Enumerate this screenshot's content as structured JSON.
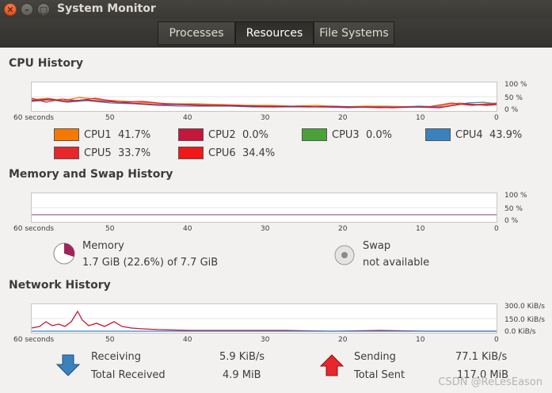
{
  "window": {
    "title": "System Monitor"
  },
  "tabs": [
    {
      "label": "Processes",
      "active": false
    },
    {
      "label": "Resources",
      "active": true
    },
    {
      "label": "File Systems",
      "active": false
    }
  ],
  "cpu": {
    "title": "CPU History",
    "y_ticks": [
      "100 %",
      "50 %",
      "0 %"
    ],
    "x_ticks": [
      "60 seconds",
      "50",
      "40",
      "30",
      "20",
      "10",
      "0"
    ],
    "legend": [
      {
        "name": "CPU1",
        "value": "41.7%",
        "color": "#f57900"
      },
      {
        "name": "CPU2",
        "value": "0.0%",
        "color": "#c4173b"
      },
      {
        "name": "CPU3",
        "value": "0.0%",
        "color": "#4aa13a"
      },
      {
        "name": "CPU4",
        "value": "43.9%",
        "color": "#3a82bd"
      },
      {
        "name": "CPU5",
        "value": "33.7%",
        "color": "#e8262b"
      },
      {
        "name": "CPU6",
        "value": "34.4%",
        "color": "#f01818"
      }
    ]
  },
  "memory": {
    "title": "Memory and Swap History",
    "y_ticks": [
      "100 %",
      "50 %",
      "0 %"
    ],
    "x_ticks": [
      "60 seconds",
      "50",
      "40",
      "30",
      "20",
      "10",
      "0"
    ],
    "memory_label": "Memory",
    "memory_value": "1.7 GiB (22.6%) of 7.7 GiB",
    "memory_percent": 22.6,
    "swap_label": "Swap",
    "swap_value": "not available"
  },
  "network": {
    "title": "Network History",
    "y_ticks": [
      "300.0 KiB/s",
      "150.0 KiB/s",
      "0.0 KiB/s"
    ],
    "x_ticks": [
      "60 seconds",
      "50",
      "40",
      "30",
      "20",
      "10",
      "0"
    ],
    "receiving_label": "Receiving",
    "receiving_value": "5.9 KiB/s",
    "total_received_label": "Total Received",
    "total_received_value": "4.9 MiB",
    "sending_label": "Sending",
    "sending_value": "77.1 KiB/s",
    "total_sent_label": "Total Sent",
    "total_sent_value": "117.0 MiB"
  },
  "watermark": "CSDN @ReLesEason"
}
